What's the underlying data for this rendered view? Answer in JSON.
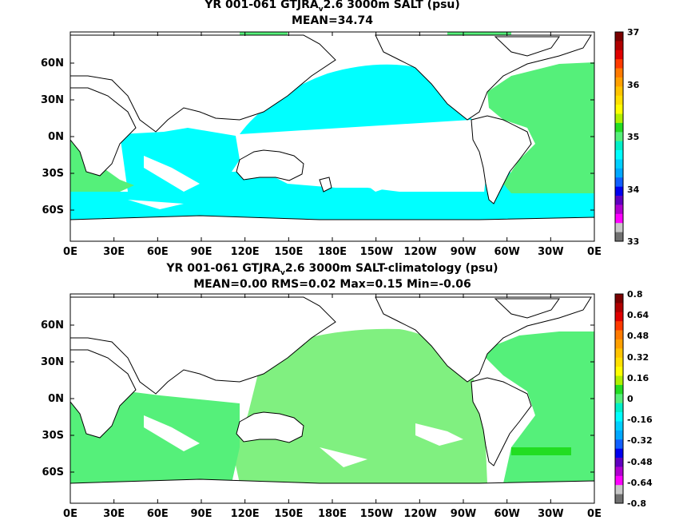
{
  "panels": [
    {
      "title_prefix": "YR 001-061 GTJRA",
      "title_sub": "v",
      "title_suffix": "2.6 3000m SALT (psu)",
      "stats": "MEAN=34.74",
      "colorbar_labels": [
        "37",
        "36",
        "35",
        "34",
        "33"
      ]
    },
    {
      "title_prefix": "YR 001-061 GTJRA",
      "title_sub": "v",
      "title_suffix": "2.6 3000m SALT-climatology (psu)",
      "stats": "MEAN=0.00   RMS=0.02   Max=0.15   Min=-0.06",
      "colorbar_labels": [
        "0.8",
        "0.64",
        "0.48",
        "0.32",
        "0.16",
        "0",
        "-0.16",
        "-0.32",
        "-0.48",
        "-0.64",
        "-0.8"
      ]
    }
  ],
  "axes": {
    "lat_labels": [
      "60N",
      "30N",
      "0N",
      "30S",
      "60S"
    ],
    "lon_labels": [
      "0E",
      "30E",
      "60E",
      "90E",
      "120E",
      "150E",
      "180E",
      "150W",
      "120W",
      "90W",
      "60W",
      "30W",
      "0E"
    ]
  },
  "colors": {
    "ocean_cyan": "#00ffff",
    "ocean_green": "#55f07a",
    "ocean_light_green": "#80f080",
    "ocean_bright_green": "#22dd22",
    "land": "#ffffff",
    "colorbar": [
      "#7a0000",
      "#b00000",
      "#e00000",
      "#ff3a00",
      "#ff7a00",
      "#ffa000",
      "#ffc400",
      "#ffe000",
      "#ffff00",
      "#b0f000",
      "#22dd22",
      "#55f07a",
      "#00f0c8",
      "#00ffff",
      "#00d0ff",
      "#00a8ff",
      "#1060ff",
      "#0000ee",
      "#6000c0",
      "#b000d0",
      "#ff00ff",
      "#c8c8c8",
      "#707070"
    ]
  }
}
